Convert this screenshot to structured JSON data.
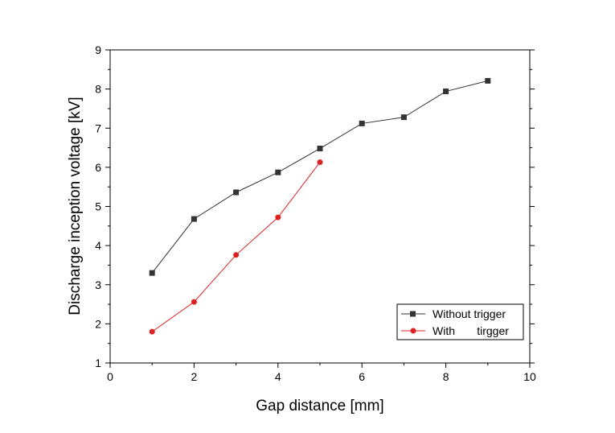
{
  "chart_data": {
    "type": "line",
    "xlabel": "Gap distance [mm]",
    "ylabel": "Discharge inception voltage [kV]",
    "xlim": [
      0,
      10
    ],
    "ylim": [
      1,
      9
    ],
    "x_ticks": [
      "0",
      "2",
      "4",
      "6",
      "8",
      "10"
    ],
    "y_ticks": [
      "1",
      "2",
      "3",
      "4",
      "5",
      "6",
      "7",
      "8",
      "9"
    ],
    "grid": false,
    "legend_position": "bottom-right",
    "series": [
      {
        "name": "Without trigger",
        "color": "#333333",
        "marker": "square",
        "x": [
          1,
          2,
          3,
          4,
          5,
          6,
          7,
          8,
          9
        ],
        "y": [
          3.3,
          4.68,
          5.36,
          5.87,
          6.48,
          7.12,
          7.28,
          7.94,
          8.21
        ]
      },
      {
        "name": "With       tirgger",
        "color": "#dd2222",
        "marker": "circle",
        "x": [
          1,
          2,
          3,
          4,
          5
        ],
        "y": [
          1.8,
          2.56,
          3.76,
          4.72,
          6.13
        ]
      }
    ]
  }
}
